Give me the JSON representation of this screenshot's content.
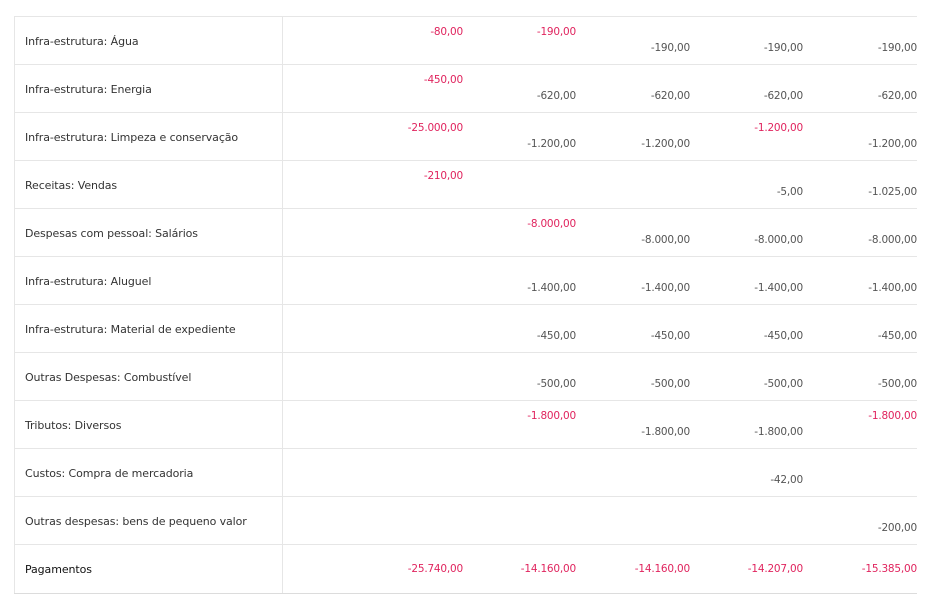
{
  "rows": [
    {
      "label": "Infra-estrutura: Água",
      "values": [
        {
          "top": "-80,00",
          "bottom": ""
        },
        {
          "top": "-190,00",
          "bottom": ""
        },
        {
          "top": "",
          "bottom": "-190,00"
        },
        {
          "top": "",
          "bottom": "-190,00"
        },
        {
          "top": "",
          "bottom": "-190,00"
        }
      ]
    },
    {
      "label": "Infra-estrutura: Energia",
      "values": [
        {
          "top": "-450,00",
          "bottom": ""
        },
        {
          "top": "",
          "bottom": "-620,00"
        },
        {
          "top": "",
          "bottom": "-620,00"
        },
        {
          "top": "",
          "bottom": "-620,00"
        },
        {
          "top": "",
          "bottom": "-620,00"
        }
      ]
    },
    {
      "label": "Infra-estrutura: Limpeza e conservação",
      "values": [
        {
          "top": "-25.000,00",
          "bottom": ""
        },
        {
          "top": "",
          "bottom": "-1.200,00"
        },
        {
          "top": "",
          "bottom": "-1.200,00"
        },
        {
          "top": "-1.200,00",
          "bottom": ""
        },
        {
          "top": "",
          "bottom": "-1.200,00"
        }
      ]
    },
    {
      "label": "Receitas: Vendas",
      "values": [
        {
          "top": "-210,00",
          "bottom": ""
        },
        {
          "top": "",
          "bottom": ""
        },
        {
          "top": "",
          "bottom": ""
        },
        {
          "top": "",
          "bottom": "-5,00"
        },
        {
          "top": "",
          "bottom": "-1.025,00"
        }
      ]
    },
    {
      "label": "Despesas com pessoal: Salários",
      "values": [
        {
          "top": "",
          "bottom": ""
        },
        {
          "top": "-8.000,00",
          "bottom": ""
        },
        {
          "top": "",
          "bottom": "-8.000,00"
        },
        {
          "top": "",
          "bottom": "-8.000,00"
        },
        {
          "top": "",
          "bottom": "-8.000,00"
        }
      ]
    },
    {
      "label": "Infra-estrutura: Aluguel",
      "values": [
        {
          "top": "",
          "bottom": ""
        },
        {
          "top": "",
          "bottom": "-1.400,00"
        },
        {
          "top": "",
          "bottom": "-1.400,00"
        },
        {
          "top": "",
          "bottom": "-1.400,00"
        },
        {
          "top": "",
          "bottom": "-1.400,00"
        }
      ]
    },
    {
      "label": "Infra-estrutura: Material de expediente",
      "values": [
        {
          "top": "",
          "bottom": ""
        },
        {
          "top": "",
          "bottom": "-450,00"
        },
        {
          "top": "",
          "bottom": "-450,00"
        },
        {
          "top": "",
          "bottom": "-450,00"
        },
        {
          "top": "",
          "bottom": "-450,00"
        }
      ]
    },
    {
      "label": "Outras Despesas: Combustível",
      "values": [
        {
          "top": "",
          "bottom": ""
        },
        {
          "top": "",
          "bottom": "-500,00"
        },
        {
          "top": "",
          "bottom": "-500,00"
        },
        {
          "top": "",
          "bottom": "-500,00"
        },
        {
          "top": "",
          "bottom": "-500,00"
        }
      ]
    },
    {
      "label": "Tributos: Diversos",
      "values": [
        {
          "top": "",
          "bottom": ""
        },
        {
          "top": "-1.800,00",
          "bottom": ""
        },
        {
          "top": "",
          "bottom": "-1.800,00"
        },
        {
          "top": "",
          "bottom": "-1.800,00"
        },
        {
          "top": "-1.800,00",
          "bottom": ""
        }
      ]
    },
    {
      "label": "Custos: Compra de mercadoria",
      "values": [
        {
          "top": "",
          "bottom": ""
        },
        {
          "top": "",
          "bottom": ""
        },
        {
          "top": "",
          "bottom": ""
        },
        {
          "top": "",
          "bottom": "-42,00"
        },
        {
          "top": "",
          "bottom": ""
        }
      ]
    },
    {
      "label": "Outras despesas: bens de pequeno valor",
      "values": [
        {
          "top": "",
          "bottom": ""
        },
        {
          "top": "",
          "bottom": ""
        },
        {
          "top": "",
          "bottom": ""
        },
        {
          "top": "",
          "bottom": ""
        },
        {
          "top": "",
          "bottom": "-200,00"
        }
      ]
    }
  ],
  "total": {
    "label": "Pagamentos",
    "values": [
      "-25.740,00",
      "-14.160,00",
      "-14.160,00",
      "-14.207,00",
      "-15.385,00"
    ]
  },
  "colors": {
    "negative_accent": "#e0245e",
    "value_text": "#555555",
    "border": "#e6e6e6"
  }
}
